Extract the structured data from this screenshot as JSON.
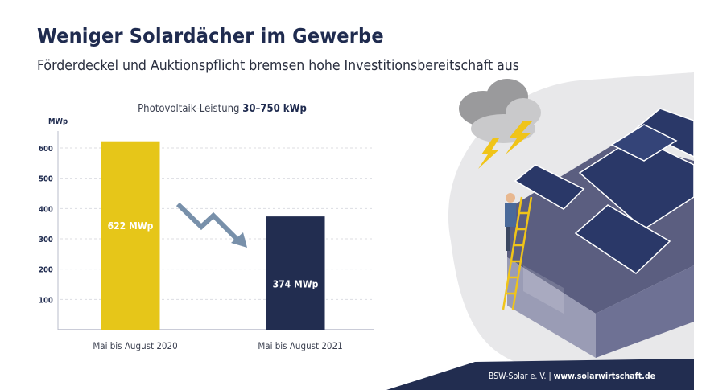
{
  "title": "Weniger Solardächer im Gewerbe",
  "subtitle": "Förderdeckel und Auktionspflicht bremsen hohe Investitionsbereitschaft aus",
  "footer": {
    "org": "BSW-Solar e. V. |",
    "url": "www.solarwirtschaft.de"
  },
  "colors": {
    "navy": "#222d50",
    "yellow": "#e6c619",
    "arrow": "#7890aa"
  },
  "chart_data": {
    "type": "bar",
    "title": "Photovoltaik-Leistung",
    "title_bold": "30–750 kWp",
    "ylabel": "MWp",
    "ylim": [
      0,
      650
    ],
    "yticks": [
      100,
      200,
      300,
      400,
      500,
      600
    ],
    "grid": true,
    "categories": [
      "Mai bis August 2020",
      "Mai bis August 2021"
    ],
    "values": [
      622,
      374
    ],
    "data_labels": [
      "622 MWp",
      "374 MWp"
    ],
    "bar_colors": [
      "#e6c619",
      "#222d50"
    ],
    "annotation": "downward-trend-arrow"
  }
}
